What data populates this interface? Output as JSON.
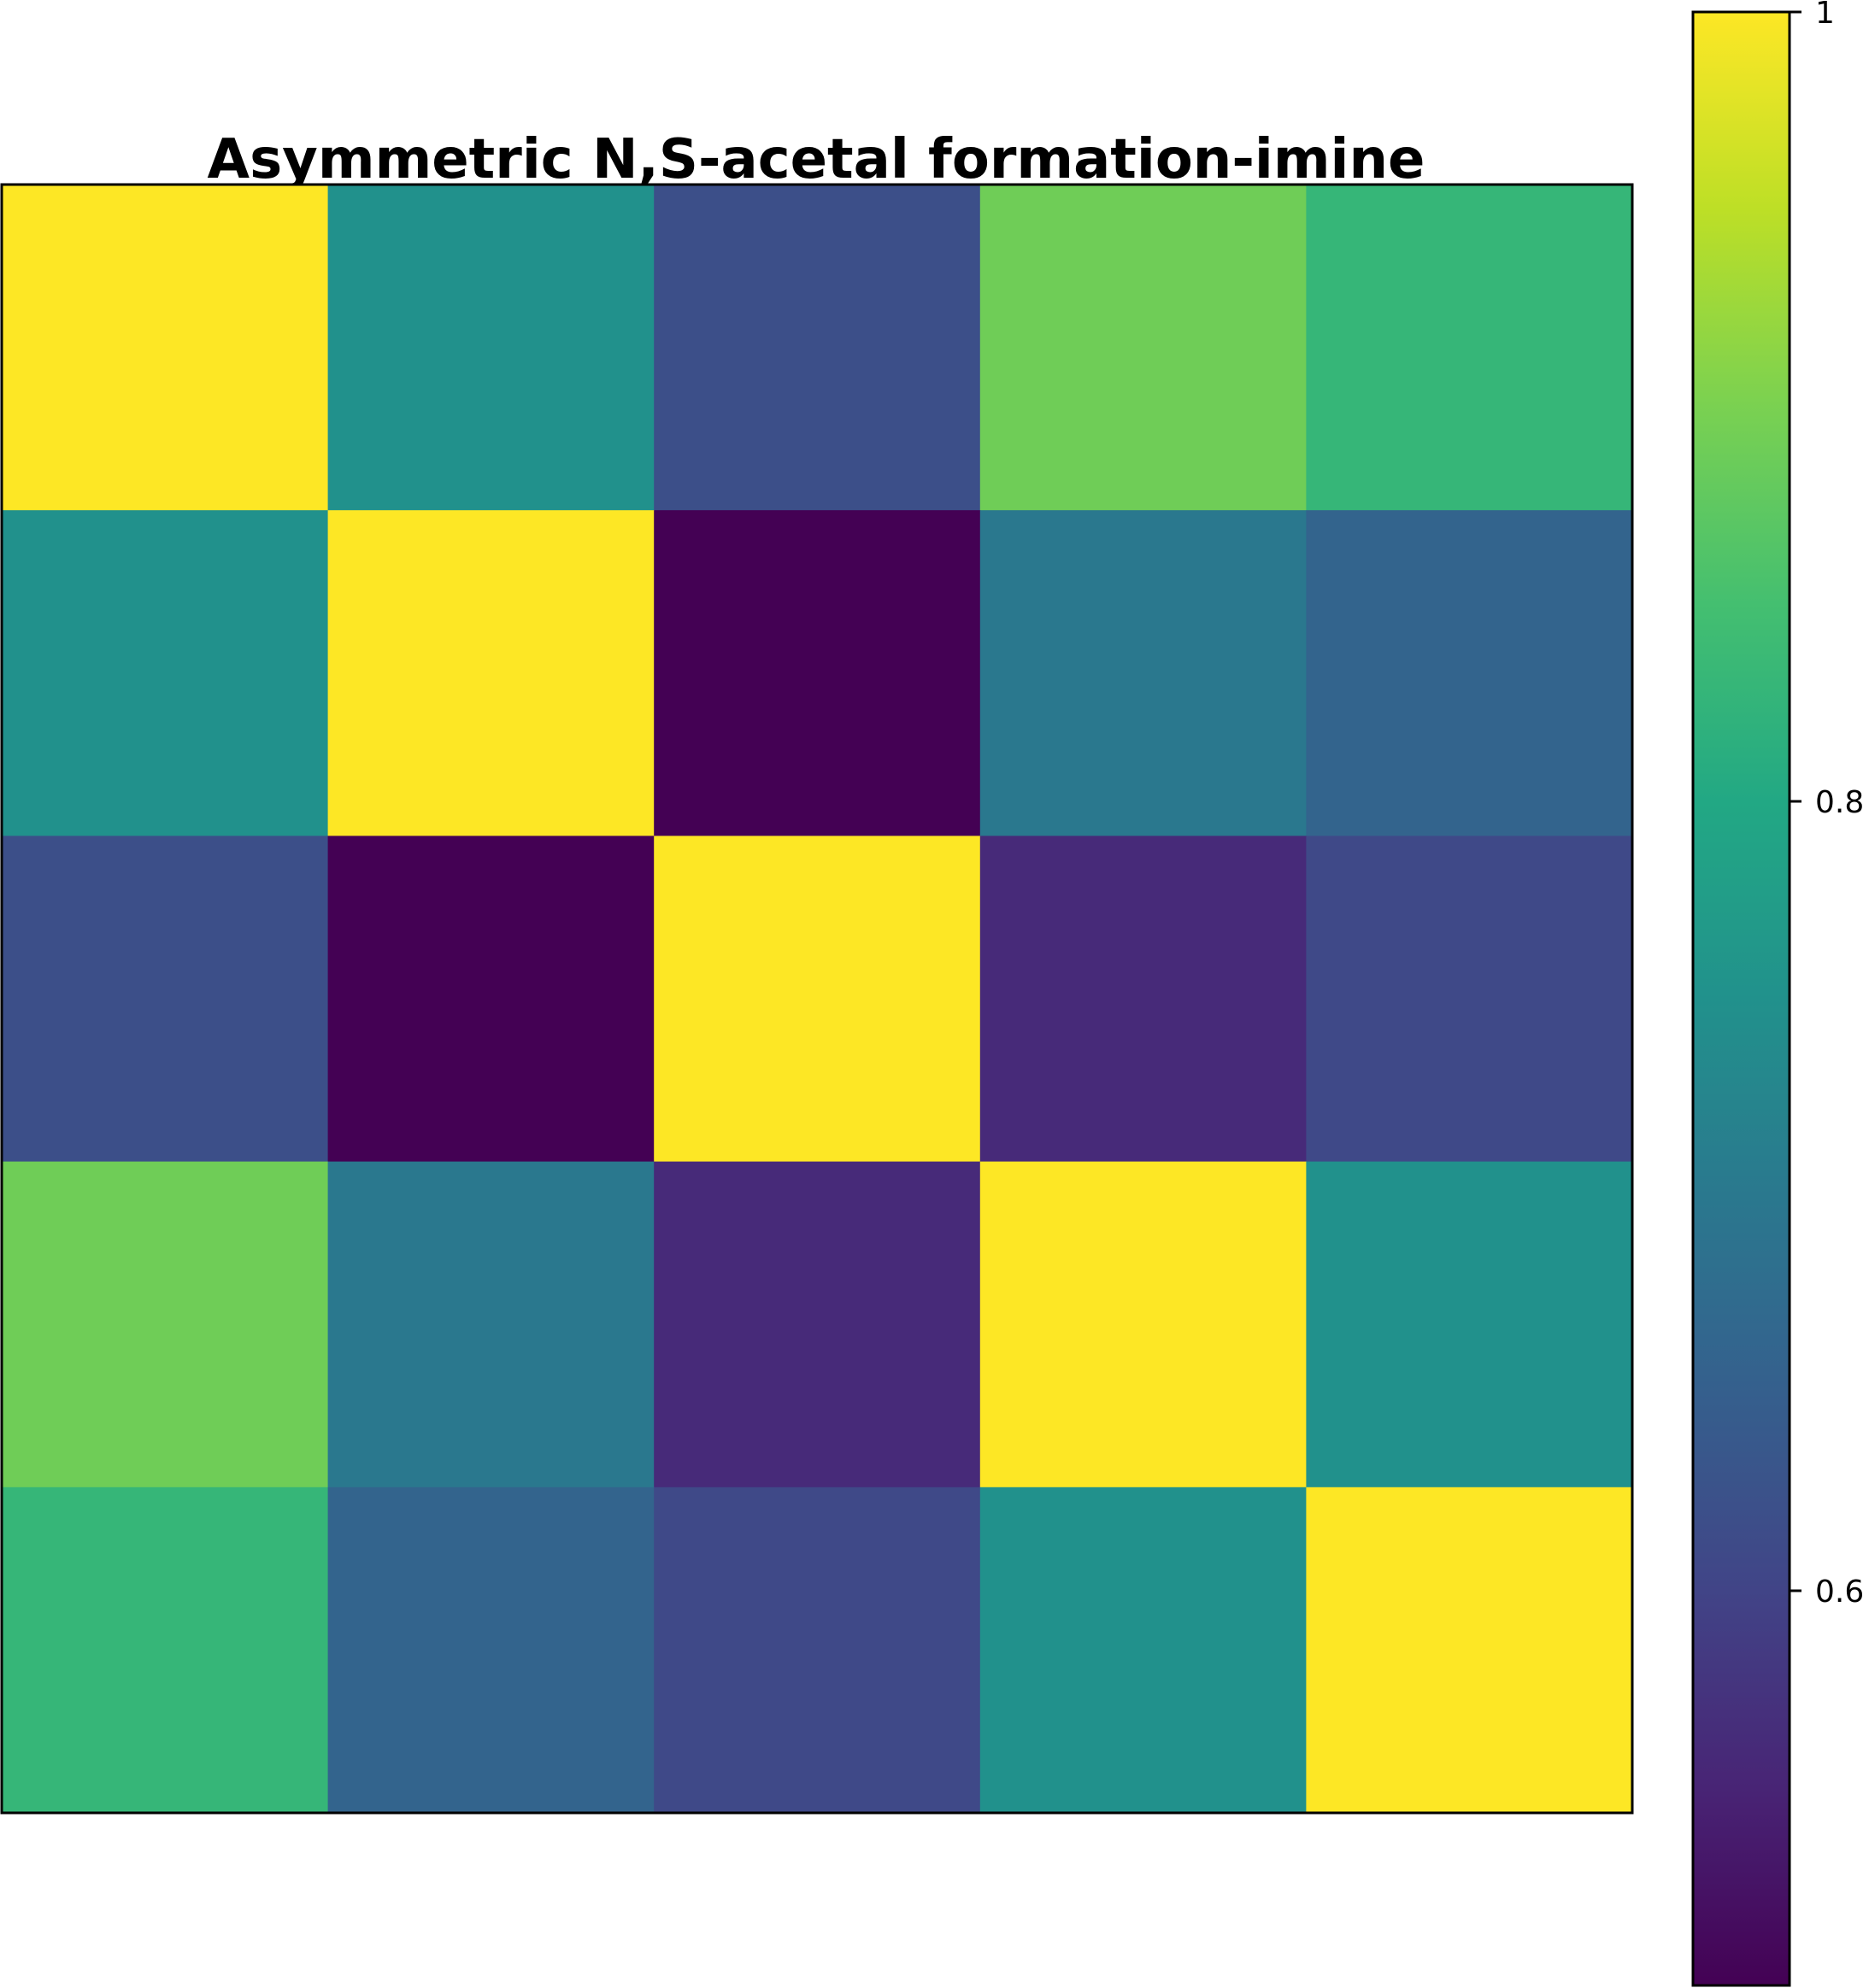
{
  "chart_data": {
    "type": "heatmap",
    "title": "Asymmetric N,S-acetal formation-imine",
    "xlabel": "",
    "ylabel": "",
    "rows": 5,
    "cols": 5,
    "values": [
      [
        1.0,
        0.75,
        0.62,
        0.89,
        0.83
      ],
      [
        0.75,
        1.0,
        0.5,
        0.7,
        0.66
      ],
      [
        0.62,
        0.5,
        1.0,
        0.56,
        0.61
      ],
      [
        0.89,
        0.7,
        0.56,
        1.0,
        0.75
      ],
      [
        0.83,
        0.66,
        0.61,
        0.75,
        1.0
      ]
    ],
    "colormap": "viridis",
    "colorbar": {
      "vmin": 0.5,
      "vmax": 1.0,
      "ticks": [
        1.0,
        0.8,
        0.6
      ],
      "tick_labels": [
        "1",
        "0.8",
        "0.6"
      ]
    },
    "grid": false,
    "axis_ticks": false
  }
}
